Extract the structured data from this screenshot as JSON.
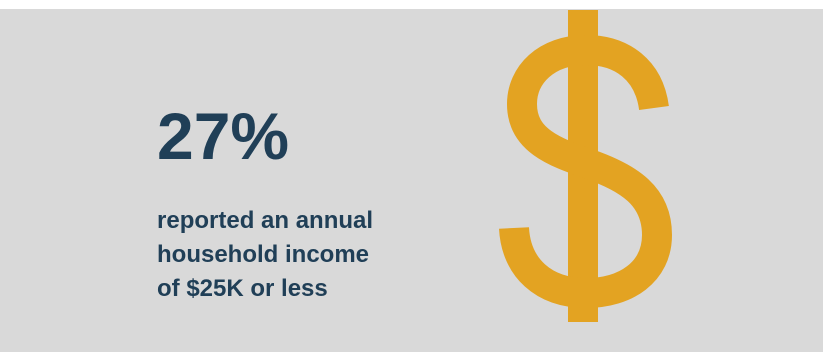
{
  "stat": {
    "value": "27%",
    "caption_lines": [
      "reported an annual",
      "household income",
      "of $25K or less"
    ]
  },
  "icon": {
    "name": "dollar-sign-icon",
    "color": "#e3a322"
  },
  "colors": {
    "background": "#d9d9d9",
    "text": "#203f57",
    "accent": "#e3a322"
  }
}
